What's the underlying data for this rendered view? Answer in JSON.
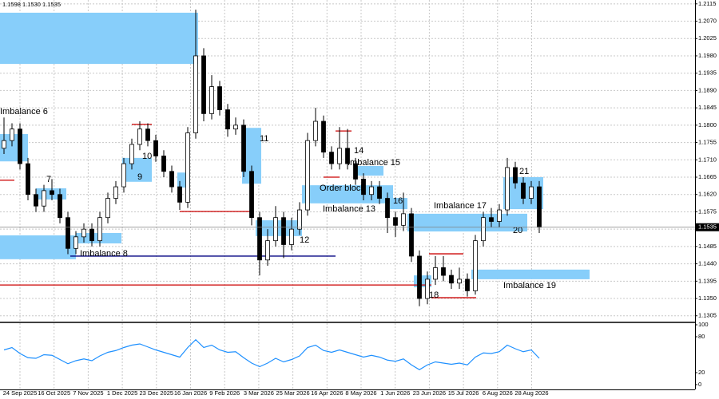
{
  "header": "1.1598 1.1530 1.1535",
  "chart_data": [
    {
      "type": "candlestick",
      "x_labels": [
        "24 Sep 2025",
        "16 Oct 2025",
        "7 Nov 2025",
        "1 Dec 2025",
        "23 Dec 2025",
        "16 Jan 2026",
        "9 Feb 2026",
        "3 Mar 2026",
        "25 Mar 2026",
        "16 Apr 2026",
        "8 May 2026",
        "1 Jun 2026",
        "23 Jun 2026",
        "15 Jul 2026",
        "6 Aug 2026",
        "28 Aug 2026"
      ],
      "open": [
        1.174,
        1.176,
        1.179,
        1.17,
        1.162,
        1.159,
        1.163,
        1.162,
        1.156,
        1.148,
        1.151,
        1.153,
        1.15,
        1.156,
        1.161,
        1.164,
        1.17,
        1.175,
        1.179,
        1.176,
        1.172,
        1.168,
        1.164,
        1.16,
        1.178,
        1.198,
        1.183,
        1.19,
        1.184,
        1.179,
        1.18,
        1.168,
        1.156,
        1.145,
        1.15,
        1.156,
        1.149,
        1.153,
        1.158,
        1.176,
        1.181,
        1.173,
        1.17,
        1.174,
        1.17,
        1.166,
        1.162,
        1.164,
        1.161,
        1.156,
        1.154,
        1.157,
        1.146,
        1.135,
        1.14,
        1.143,
        1.141,
        1.139,
        1.14,
        1.137,
        1.15,
        1.156,
        1.155,
        1.158,
        1.169,
        1.165,
        1.161,
        1.164
      ],
      "high": [
        1.182,
        1.1805,
        1.1805,
        1.1715,
        1.1635,
        1.1645,
        1.166,
        1.1635,
        1.1575,
        1.1525,
        1.1545,
        1.1545,
        1.1575,
        1.1625,
        1.1655,
        1.1715,
        1.1765,
        1.181,
        1.1805,
        1.1775,
        1.1735,
        1.1695,
        1.1655,
        1.1795,
        1.21,
        1.2,
        1.193,
        1.1915,
        1.1855,
        1.182,
        1.1815,
        1.1695,
        1.1575,
        1.153,
        1.159,
        1.1575,
        1.156,
        1.16,
        1.178,
        1.1845,
        1.1825,
        1.1745,
        1.1795,
        1.179,
        1.1715,
        1.1675,
        1.1655,
        1.1655,
        1.1625,
        1.1575,
        1.1625,
        1.1585,
        1.1475,
        1.142,
        1.146,
        1.146,
        1.1425,
        1.143,
        1.1415,
        1.1515,
        1.1575,
        1.1585,
        1.1595,
        1.1715,
        1.1705,
        1.1665,
        1.1655,
        1.1655
      ],
      "low": [
        1.1725,
        1.1745,
        1.1685,
        1.1605,
        1.1575,
        1.1575,
        1.1605,
        1.1545,
        1.1465,
        1.1465,
        1.1495,
        1.1485,
        1.1485,
        1.1545,
        1.1595,
        1.1625,
        1.1685,
        1.1735,
        1.1745,
        1.1705,
        1.1665,
        1.1625,
        1.158,
        1.1585,
        1.1765,
        1.181,
        1.1815,
        1.1825,
        1.177,
        1.1775,
        1.1665,
        1.154,
        1.141,
        1.1435,
        1.1485,
        1.1455,
        1.1475,
        1.1515,
        1.1565,
        1.1745,
        1.1715,
        1.1685,
        1.1685,
        1.1685,
        1.1645,
        1.1605,
        1.1605,
        1.1595,
        1.152,
        1.151,
        1.1525,
        1.1445,
        1.133,
        1.1335,
        1.1385,
        1.1395,
        1.1375,
        1.1375,
        1.1355,
        1.136,
        1.1485,
        1.1535,
        1.1535,
        1.1565,
        1.1635,
        1.1595,
        1.1595,
        1.152
      ],
      "close": [
        1.176,
        1.179,
        1.17,
        1.162,
        1.159,
        1.163,
        1.162,
        1.156,
        1.148,
        1.151,
        1.153,
        1.15,
        1.156,
        1.161,
        1.164,
        1.17,
        1.175,
        1.179,
        1.176,
        1.172,
        1.168,
        1.164,
        1.16,
        1.178,
        1.198,
        1.183,
        1.19,
        1.184,
        1.179,
        1.18,
        1.168,
        1.156,
        1.145,
        1.15,
        1.156,
        1.149,
        1.153,
        1.158,
        1.176,
        1.181,
        1.173,
        1.17,
        1.174,
        1.17,
        1.166,
        1.162,
        1.164,
        1.161,
        1.156,
        1.154,
        1.157,
        1.146,
        1.135,
        1.14,
        1.143,
        1.141,
        1.139,
        1.14,
        1.137,
        1.15,
        1.156,
        1.155,
        1.158,
        1.169,
        1.165,
        1.161,
        1.164,
        1.1535
      ],
      "up_color": "#ffffff",
      "down_color": "#000000",
      "ylim": [
        1.129,
        1.2125
      ],
      "yticks": [
        1.2115,
        {
          "value": 1.207,
          "label": "1.2070"
        },
        1.2025,
        {
          "value": 1.198,
          "label": "1.1980"
        },
        1.1935,
        {
          "value": 1.189,
          "label": "1.1890"
        },
        1.1845,
        {
          "value": 1.18,
          "label": "1.1800"
        },
        1.1755,
        {
          "value": 1.171,
          "label": "1.1710"
        },
        1.1665,
        {
          "value": 1.162,
          "label": "1.1620"
        },
        1.1575,
        {
          "value": 1.153,
          "label": "1.1530"
        },
        1.1485,
        {
          "value": 1.144,
          "label": "1.1440"
        },
        1.1395,
        {
          "value": 1.135,
          "label": "1.1350"
        },
        1.1305
      ],
      "grid": true,
      "last_price": 1.1535,
      "zone_color": "#87cefa",
      "zones": [
        {
          "top": 1.2092,
          "bottom": 1.1959
        },
        {
          "top": 1.1777,
          "bottom": 1.1706
        },
        {
          "top": 1.1636,
          "bottom": 1.1607
        },
        {
          "top": 1.1514,
          "bottom": 1.1452
        },
        {
          "top": 1.152,
          "bottom": 1.1493
        },
        {
          "top": 1.1715,
          "bottom": 1.1653
        },
        {
          "top": 1.1677,
          "bottom": 1.1638
        },
        {
          "top": 1.1793,
          "bottom": 1.1648
        },
        {
          "top": 1.1553,
          "bottom": 1.1512
        },
        {
          "top": 1.1644,
          "bottom": 1.1597
        },
        {
          "top": 1.1694,
          "bottom": 1.1669
        },
        {
          "top": 1.1611,
          "bottom": 1.1582
        },
        {
          "top": 1.157,
          "bottom": 1.1524
        },
        {
          "top": 1.1665,
          "bottom": 1.1582
        },
        {
          "top": 1.1425,
          "bottom": 1.14
        },
        {
          "top": 1.141,
          "bottom": 1.1379
        }
      ],
      "levels": [
        {
          "value": 1.1657,
          "color": "#cc0000"
        },
        {
          "value": 1.146,
          "color": "#000080"
        },
        {
          "value": 1.1385,
          "color": "#cc0000"
        },
        {
          "value": 1.1576,
          "color": "#cc0000"
        },
        {
          "value": 1.1802,
          "color": "#cc0000"
        },
        {
          "value": 1.1466,
          "color": "#cc0000"
        },
        {
          "value": 1.1352,
          "color": "#cc0000"
        },
        {
          "value": 1.1785,
          "color": "#cc0000"
        },
        {
          "value": 1.1665,
          "color": "#cc0000"
        }
      ],
      "annotations": [
        "Imbalance 6",
        "7",
        "Imbalance 8",
        "9",
        "10",
        "11",
        "12",
        "Order block",
        "Imbalance 13",
        "14",
        "Imbalance 15",
        "16",
        "Imbalance 17",
        "18",
        "Imbalance 19",
        "20",
        "21"
      ]
    },
    {
      "type": "line",
      "values": [
        58,
        62,
        52,
        45,
        44,
        50,
        49,
        42,
        35,
        40,
        43,
        40,
        48,
        54,
        57,
        62,
        66,
        68,
        63,
        58,
        54,
        50,
        46,
        62,
        75,
        62,
        66,
        58,
        54,
        55,
        45,
        36,
        30,
        36,
        44,
        38,
        42,
        48,
        62,
        66,
        57,
        54,
        58,
        54,
        50,
        46,
        49,
        46,
        41,
        39,
        43,
        33,
        25,
        33,
        38,
        36,
        34,
        36,
        33,
        46,
        53,
        52,
        55,
        66,
        60,
        55,
        58,
        44
      ],
      "color": "#1e90ff",
      "ylim": [
        0,
        100
      ],
      "yticks": [
        100,
        80,
        20,
        0
      ]
    }
  ]
}
